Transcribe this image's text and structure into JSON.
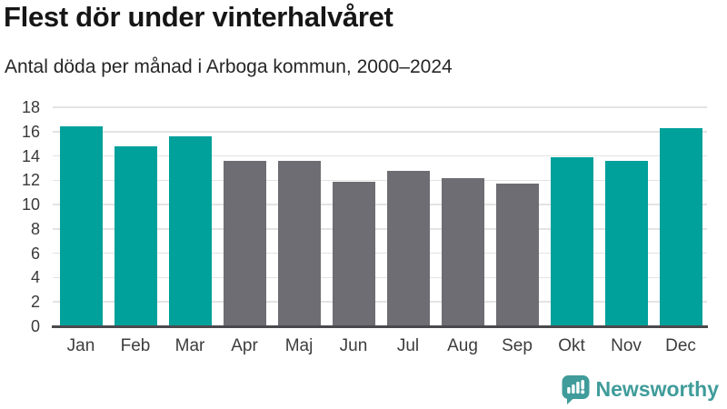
{
  "header": {
    "title": "Flest dör under vinterhalvåret",
    "subtitle": "Antal döda per månad i Arboga kommun, 2000–2024"
  },
  "chart_data": {
    "type": "bar",
    "title": "Flest dör under vinterhalvåret",
    "subtitle": "Antal döda per månad i Arboga kommun, 2000–2024",
    "categories": [
      "Jan",
      "Feb",
      "Mar",
      "Apr",
      "Maj",
      "Jun",
      "Jul",
      "Aug",
      "Sep",
      "Okt",
      "Nov",
      "Dec"
    ],
    "values": [
      16.4,
      14.8,
      15.6,
      13.6,
      13.6,
      11.9,
      12.8,
      12.2,
      11.7,
      13.9,
      13.6,
      16.3
    ],
    "bar_colors": [
      "teal",
      "teal",
      "teal",
      "gray",
      "gray",
      "gray",
      "gray",
      "gray",
      "gray",
      "teal",
      "teal",
      "teal"
    ],
    "palette": {
      "teal": "#00A09B",
      "gray": "#6D6D73"
    },
    "xlabel": "",
    "ylabel": "",
    "ylim": [
      0,
      18
    ],
    "yticks": [
      0,
      2,
      4,
      6,
      8,
      10,
      12,
      14,
      16,
      18
    ],
    "grid": true,
    "legend_position": "none"
  },
  "footer": {
    "brand": "Newsworthy",
    "brand_color": "#3F9C9A",
    "logo_icon": "bar-chart-speech-bubble-icon"
  }
}
